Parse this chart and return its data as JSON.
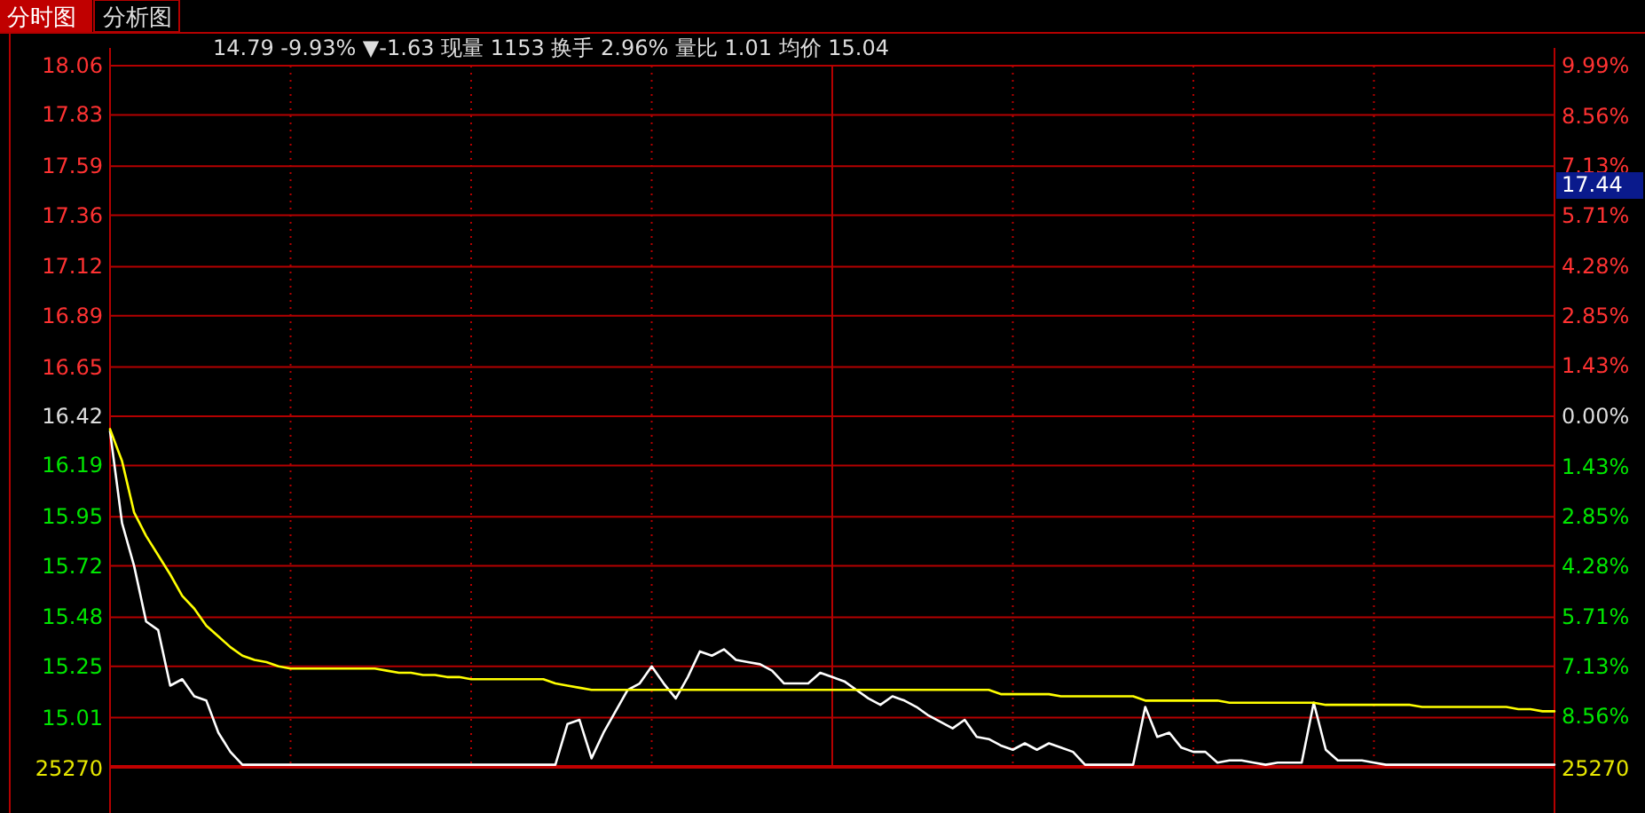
{
  "chart_data": {
    "type": "line",
    "title": "分时图",
    "subtitle": "14.79 -9.93% ▼-1.63 现量 1153 换手 2.96% 量比 1.01 均价 15.04",
    "annotations": [
      "分析图",
      "17.44",
      "25270",
      "25270"
    ],
    "categories": [
      null,
      null,
      null,
      null,
      null,
      null,
      null,
      null,
      null,
      null,
      null,
      null,
      null,
      null,
      null,
      null,
      null,
      null,
      null,
      null,
      null,
      null,
      null,
      null,
      null,
      null,
      null,
      null,
      null,
      null,
      null,
      null,
      null,
      null,
      null,
      null,
      null,
      null,
      null,
      null,
      null,
      null,
      null,
      null,
      null,
      null,
      null,
      null,
      null,
      null,
      null,
      null,
      null,
      null,
      null,
      null,
      null,
      null,
      null,
      null,
      null,
      null,
      null,
      null,
      null,
      null,
      null,
      null,
      null,
      null,
      null,
      null,
      null,
      null,
      null,
      null,
      null,
      null,
      null,
      null,
      null,
      null,
      null,
      null,
      null,
      null,
      null,
      null,
      null,
      null,
      null,
      null,
      null,
      null,
      null,
      null,
      null,
      null,
      null,
      null,
      null,
      null,
      null,
      null,
      null,
      null,
      null,
      null,
      null,
      null,
      null,
      null,
      null,
      null,
      null,
      null,
      null,
      null,
      null,
      null,
      null
    ],
    "ylim": [
      14.78,
      18.06
    ],
    "yticks": [
      15.01,
      15.25,
      15.48,
      15.72,
      15.95,
      16.19,
      16.42,
      16.65,
      16.89,
      17.12,
      17.36,
      17.59,
      17.83,
      18.06
    ],
    "y2lim": [
      -9.99,
      9.99
    ],
    "y2ticks": [
      {
        "value": -8.56,
        "label": "8.56%"
      },
      {
        "value": -7.13,
        "label": "7.13%"
      },
      {
        "value": -5.71,
        "label": "5.71%"
      },
      {
        "value": -4.28,
        "label": "4.28%"
      },
      {
        "value": -2.85,
        "label": "2.85%"
      },
      {
        "value": -1.43,
        "label": "1.43%"
      },
      {
        "value": 0,
        "label": "0.00%"
      },
      {
        "value": 1.43,
        "label": "1.43%"
      },
      {
        "value": 2.85,
        "label": "2.85%"
      },
      {
        "value": 4.28,
        "label": "4.28%"
      },
      {
        "value": 5.71,
        "label": "5.71%"
      },
      {
        "value": 7.13,
        "label": "7.13%"
      },
      {
        "value": 8.56,
        "label": "8.56%"
      },
      {
        "value": 9.99,
        "label": "9.99%"
      }
    ],
    "grid": true,
    "line_style": "solid",
    "series": [
      {
        "color": "#ffffff",
        "values": [
          16.35,
          15.92,
          15.72,
          15.46,
          15.42,
          15.16,
          15.19,
          15.11,
          15.09,
          14.94,
          14.85,
          14.79,
          14.79,
          14.79,
          14.79,
          14.79,
          14.79,
          14.79,
          14.79,
          14.79,
          14.79,
          14.79,
          14.79,
          14.79,
          14.79,
          14.79,
          14.79,
          14.79,
          14.79,
          14.79,
          14.79,
          14.79,
          14.79,
          14.79,
          14.79,
          14.79,
          14.79,
          14.79,
          14.98,
          15.0,
          14.82,
          14.94,
          15.04,
          15.14,
          15.17,
          15.25,
          15.17,
          15.1,
          15.2,
          15.32,
          15.3,
          15.33,
          15.28,
          15.27,
          15.26,
          15.23,
          15.17,
          15.17,
          15.17,
          15.22,
          15.2,
          15.18,
          15.14,
          15.1,
          15.07,
          15.11,
          15.09,
          15.06,
          15.02,
          14.99,
          14.96,
          15.0,
          14.92,
          14.91,
          14.88,
          14.86,
          14.89,
          14.86,
          14.89,
          14.87,
          14.85,
          14.79,
          14.79,
          14.79,
          14.79,
          14.79,
          15.06,
          14.92,
          14.94,
          14.87,
          14.85,
          14.85,
          14.8,
          14.81,
          14.81,
          14.8,
          14.79,
          14.8,
          14.8,
          14.8,
          15.08,
          14.86,
          14.81,
          14.81,
          14.81,
          14.8,
          14.79,
          14.79,
          14.79,
          14.79,
          14.79,
          14.79,
          14.79,
          14.79,
          14.79,
          14.79,
          14.79,
          14.79,
          14.79,
          14.79,
          14.79
        ]
      },
      {
        "color": "#ffff00",
        "values": [
          16.36,
          16.21,
          15.97,
          15.86,
          15.77,
          15.68,
          15.58,
          15.52,
          15.44,
          15.39,
          15.34,
          15.3,
          15.28,
          15.27,
          15.25,
          15.24,
          15.24,
          15.24,
          15.24,
          15.24,
          15.24,
          15.24,
          15.24,
          15.23,
          15.22,
          15.22,
          15.21,
          15.21,
          15.2,
          15.2,
          15.19,
          15.19,
          15.19,
          15.19,
          15.19,
          15.19,
          15.19,
          15.17,
          15.16,
          15.15,
          15.14,
          15.14,
          15.14,
          15.14,
          15.14,
          15.14,
          15.14,
          15.14,
          15.14,
          15.14,
          15.14,
          15.14,
          15.14,
          15.14,
          15.14,
          15.14,
          15.14,
          15.14,
          15.14,
          15.14,
          15.14,
          15.14,
          15.14,
          15.14,
          15.14,
          15.14,
          15.14,
          15.14,
          15.14,
          15.14,
          15.14,
          15.14,
          15.14,
          15.14,
          15.12,
          15.12,
          15.12,
          15.12,
          15.12,
          15.11,
          15.11,
          15.11,
          15.11,
          15.11,
          15.11,
          15.11,
          15.09,
          15.09,
          15.09,
          15.09,
          15.09,
          15.09,
          15.09,
          15.08,
          15.08,
          15.08,
          15.08,
          15.08,
          15.08,
          15.08,
          15.08,
          15.07,
          15.07,
          15.07,
          15.07,
          15.07,
          15.07,
          15.07,
          15.07,
          15.06,
          15.06,
          15.06,
          15.06,
          15.06,
          15.06,
          15.06,
          15.06,
          15.05,
          15.05,
          15.04,
          15.04
        ]
      }
    ]
  }
}
